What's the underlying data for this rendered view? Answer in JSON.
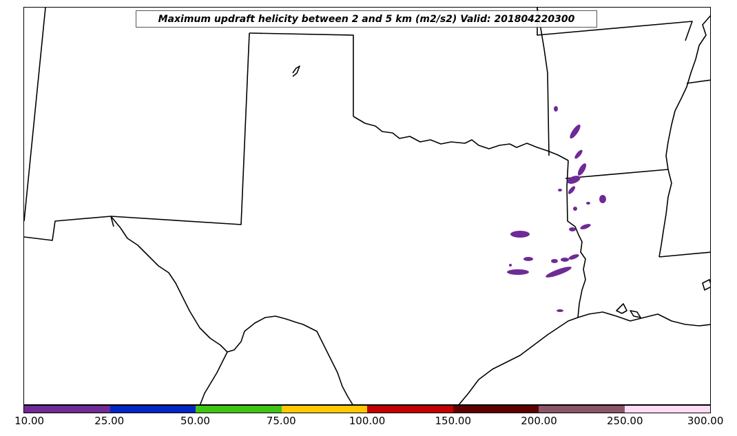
{
  "title": "Maximum updraft helicity between 2 and 5 km (m2/s2) Valid: 201804220300",
  "colorbar": {
    "ticks": [
      "10.00",
      "25.00",
      "50.00",
      "75.00",
      "100.00",
      "150.00",
      "200.00",
      "250.00",
      "300.00"
    ],
    "colors": [
      "#6f2a95",
      "#0027c4",
      "#3fc413",
      "#ffc800",
      "#c40000",
      "#5e0000",
      "#8a5667",
      "#ffdcf5"
    ]
  },
  "colors": {
    "boundary": "#000000",
    "helicity_cells": "#6f2a95",
    "background": "#ffffff"
  }
}
